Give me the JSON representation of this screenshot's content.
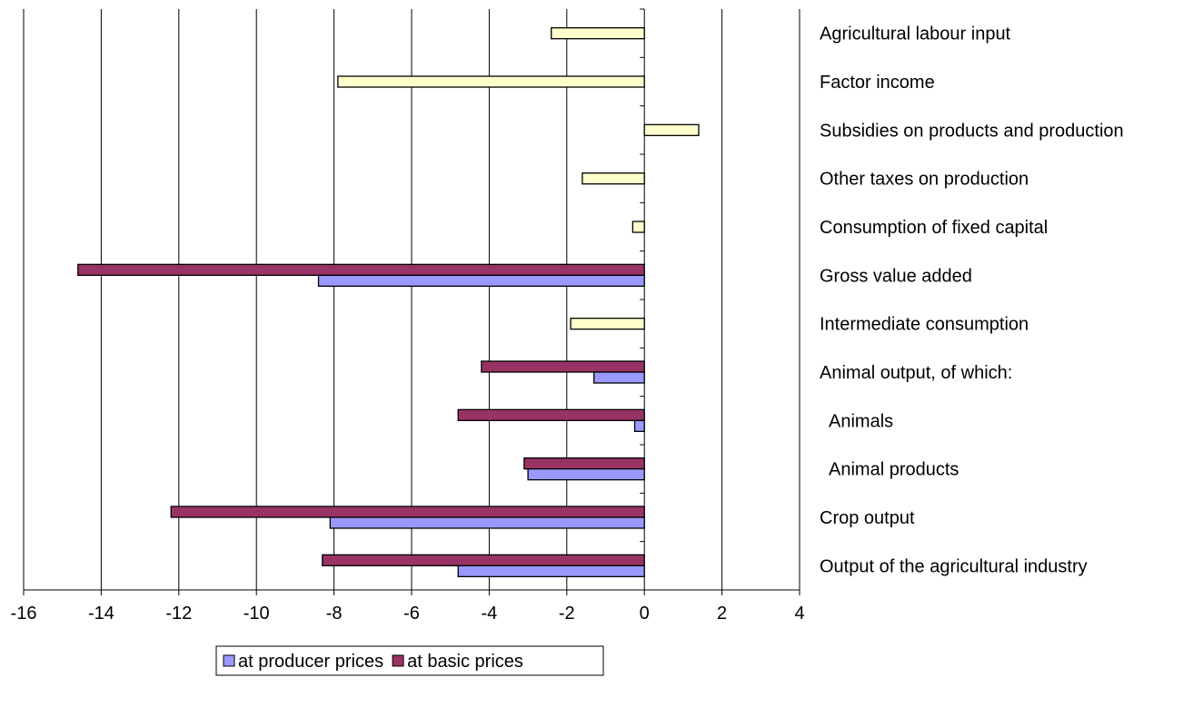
{
  "chart_data": {
    "type": "bar",
    "orientation": "horizontal",
    "title": "",
    "xlabel": "",
    "ylabel": "",
    "xlim": [
      -16,
      4
    ],
    "x_ticks": [
      -16,
      -14,
      -12,
      -10,
      -8,
      -6,
      -4,
      -2,
      0,
      2,
      4
    ],
    "grid": "vertical",
    "legend_position": "bottom",
    "categories": [
      "Agricultural labour input",
      "Factor income",
      "Subsidies on products and production",
      "Other taxes on production",
      "Consumption of fixed capital",
      "Gross value added",
      "Intermediate consumption",
      "Animal output, of which:",
      "  Animals",
      "  Animal products",
      "Crop output",
      "Output of the agricultural industry"
    ],
    "series": [
      {
        "name": "",
        "color": "#FFFFCC",
        "values": [
          -2.4,
          -7.9,
          1.4,
          -1.6,
          -0.3,
          null,
          -1.9,
          null,
          null,
          null,
          null,
          null
        ]
      },
      {
        "name": "at basic prices",
        "color": "#993366",
        "values": [
          null,
          null,
          null,
          null,
          null,
          -14.6,
          null,
          -4.2,
          -4.8,
          -3.1,
          -12.2,
          -8.3
        ]
      },
      {
        "name": "at producer prices",
        "color": "#9999FF",
        "values": [
          null,
          null,
          null,
          null,
          null,
          -8.4,
          null,
          -1.3,
          -0.25,
          -3.0,
          -8.1,
          -4.8
        ]
      }
    ],
    "legend": [
      {
        "label": "at producer prices",
        "color": "#9999FF"
      },
      {
        "label": "at basic prices",
        "color": "#993366"
      }
    ]
  }
}
